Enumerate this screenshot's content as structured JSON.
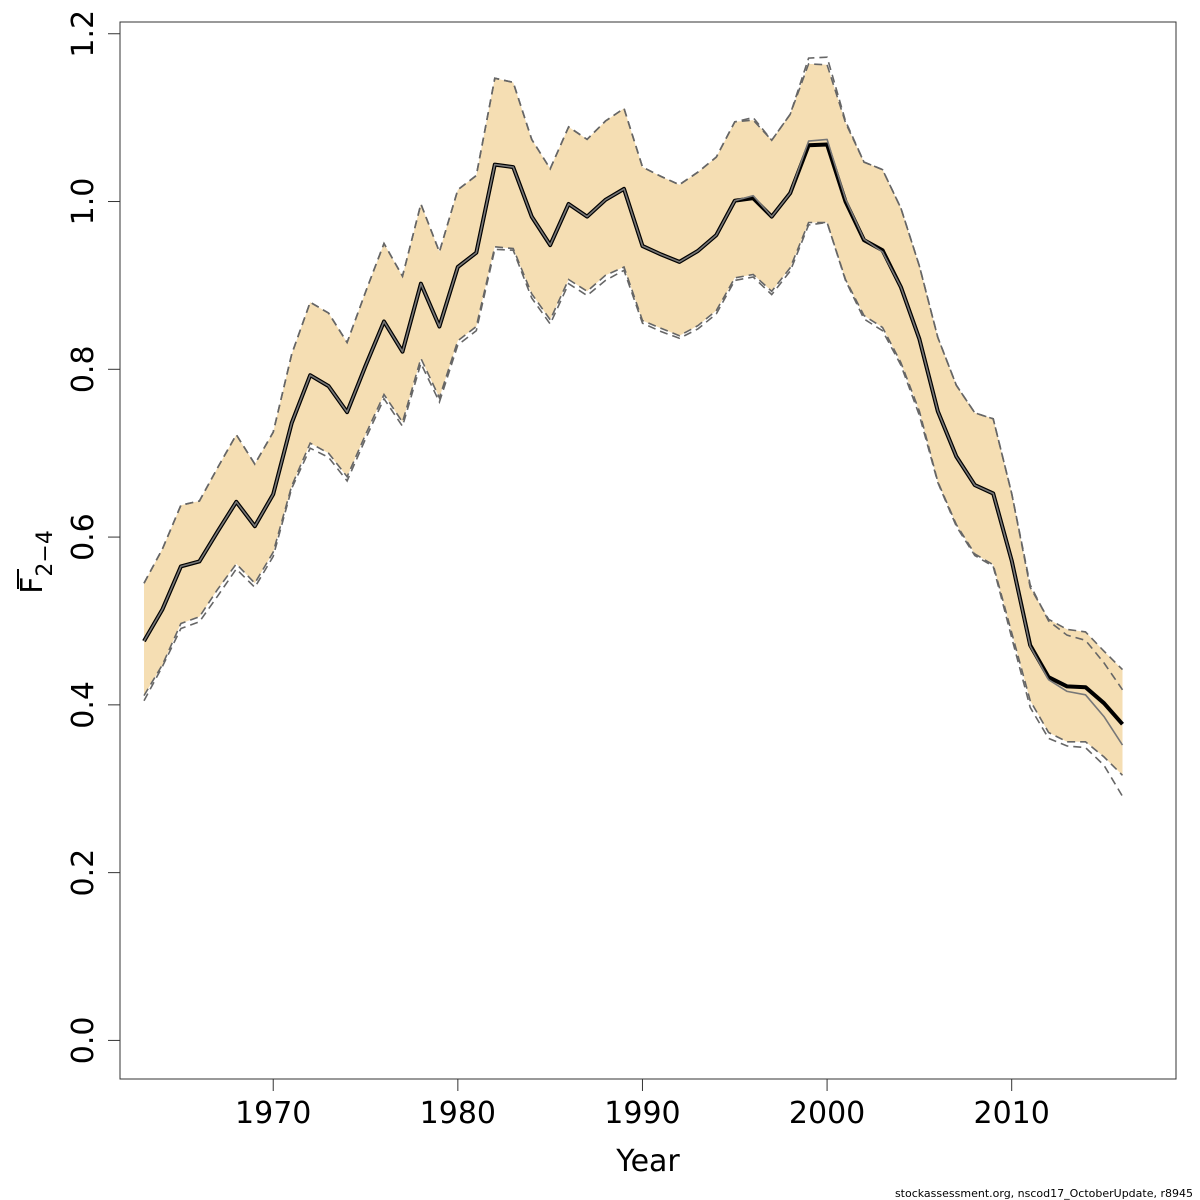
{
  "chart_data": {
    "type": "line",
    "xlabel": "Year",
    "ylabel_main": "F",
    "ylabel_sub": "2−4",
    "footer": "stockassessment.org, nscod17_OctoberUpdate, r8945",
    "xlim": [
      1961.7,
      2018.9
    ],
    "ylim": [
      -0.046,
      1.214
    ],
    "xticks": [
      1970,
      1980,
      1990,
      2000,
      2010
    ],
    "xtick_labels": [
      "1970",
      "1980",
      "1990",
      "2000",
      "2010"
    ],
    "yticks": [
      0.0,
      0.2,
      0.4,
      0.6,
      0.8,
      1.0,
      1.2
    ],
    "ytick_labels": [
      "0.0",
      "0.2",
      "0.4",
      "0.6",
      "0.8",
      "1.0",
      "1.2"
    ],
    "grid": false,
    "colors": {
      "band": "#f5deb3",
      "estimate": "#000000",
      "previous": "#777777",
      "bounds": "#666666"
    },
    "x": [
      1963,
      1964,
      1965,
      1966,
      1967,
      1968,
      1969,
      1970,
      1971,
      1972,
      1973,
      1974,
      1975,
      1976,
      1977,
      1978,
      1979,
      1980,
      1981,
      1982,
      1983,
      1984,
      1985,
      1986,
      1987,
      1988,
      1989,
      1990,
      1991,
      1992,
      1993,
      1994,
      1995,
      1996,
      1997,
      1998,
      1999,
      2000,
      2001,
      2002,
      2003,
      2004,
      2005,
      2006,
      2007,
      2008,
      2009,
      2010,
      2011,
      2012,
      2013,
      2014,
      2015,
      2016
    ],
    "series": [
      {
        "role": "estimate",
        "values": [
          0.476,
          0.514,
          0.565,
          0.571,
          0.607,
          0.642,
          0.613,
          0.651,
          0.736,
          0.793,
          0.78,
          0.749,
          0.804,
          0.857,
          0.821,
          0.902,
          0.851,
          0.922,
          0.939,
          1.044,
          1.041,
          0.982,
          0.948,
          0.997,
          0.982,
          1.002,
          1.015,
          0.947,
          0.937,
          0.928,
          0.941,
          0.96,
          1.001,
          1.004,
          0.982,
          1.01,
          1.067,
          1.068,
          1.0,
          0.954,
          0.942,
          0.898,
          0.836,
          0.75,
          0.696,
          0.662,
          0.652,
          0.572,
          0.471,
          0.433,
          0.422,
          0.421,
          0.402,
          0.377
        ]
      },
      {
        "role": "previous",
        "values": [
          0.476,
          0.514,
          0.565,
          0.571,
          0.607,
          0.642,
          0.613,
          0.651,
          0.736,
          0.793,
          0.78,
          0.749,
          0.804,
          0.857,
          0.821,
          0.902,
          0.851,
          0.922,
          0.939,
          1.044,
          1.041,
          0.982,
          0.948,
          0.997,
          0.982,
          1.002,
          1.015,
          0.947,
          0.937,
          0.928,
          0.941,
          0.96,
          1.001,
          1.007,
          0.982,
          1.01,
          1.072,
          1.074,
          1.003,
          0.955,
          0.94,
          0.898,
          0.836,
          0.75,
          0.696,
          0.662,
          0.652,
          0.572,
          0.47,
          0.43,
          0.416,
          0.412,
          0.386,
          0.352
        ]
      },
      {
        "role": "upper",
        "values": [
          0.545,
          0.586,
          0.638,
          0.643,
          0.683,
          0.722,
          0.687,
          0.725,
          0.818,
          0.88,
          0.867,
          0.832,
          0.892,
          0.95,
          0.911,
          0.997,
          0.94,
          1.014,
          1.031,
          1.147,
          1.142,
          1.074,
          1.039,
          1.089,
          1.074,
          1.096,
          1.111,
          1.041,
          1.03,
          1.02,
          1.035,
          1.053,
          1.095,
          1.097,
          1.073,
          1.104,
          1.164,
          1.163,
          1.094,
          1.047,
          1.038,
          0.992,
          0.923,
          0.838,
          0.781,
          0.748,
          0.741,
          0.652,
          0.54,
          0.502,
          0.49,
          0.487,
          0.464,
          0.442
        ]
      },
      {
        "role": "lower",
        "values": [
          0.411,
          0.448,
          0.497,
          0.505,
          0.538,
          0.568,
          0.545,
          0.582,
          0.661,
          0.712,
          0.7,
          0.672,
          0.722,
          0.77,
          0.737,
          0.813,
          0.766,
          0.834,
          0.851,
          0.946,
          0.944,
          0.89,
          0.859,
          0.907,
          0.893,
          0.912,
          0.922,
          0.858,
          0.849,
          0.84,
          0.852,
          0.87,
          0.909,
          0.913,
          0.893,
          0.921,
          0.975,
          0.975,
          0.907,
          0.864,
          0.85,
          0.808,
          0.75,
          0.666,
          0.615,
          0.58,
          0.567,
          0.486,
          0.405,
          0.367,
          0.356,
          0.356,
          0.338,
          0.316
        ]
      },
      {
        "role": "previous-upper",
        "values": [
          0.545,
          0.586,
          0.638,
          0.643,
          0.683,
          0.722,
          0.687,
          0.725,
          0.818,
          0.88,
          0.867,
          0.832,
          0.892,
          0.95,
          0.911,
          0.997,
          0.94,
          1.014,
          1.031,
          1.147,
          1.142,
          1.074,
          1.039,
          1.089,
          1.074,
          1.096,
          1.111,
          1.041,
          1.03,
          1.02,
          1.035,
          1.053,
          1.095,
          1.1,
          1.073,
          1.104,
          1.171,
          1.172,
          1.096,
          1.047,
          1.038,
          0.992,
          0.923,
          0.838,
          0.781,
          0.748,
          0.741,
          0.652,
          0.543,
          0.5,
          0.483,
          0.477,
          0.45,
          0.418
        ]
      },
      {
        "role": "previous-lower",
        "values": [
          0.405,
          0.446,
          0.491,
          0.499,
          0.53,
          0.562,
          0.54,
          0.577,
          0.658,
          0.706,
          0.695,
          0.667,
          0.717,
          0.765,
          0.732,
          0.807,
          0.761,
          0.829,
          0.846,
          0.943,
          0.942,
          0.885,
          0.854,
          0.902,
          0.888,
          0.906,
          0.918,
          0.855,
          0.845,
          0.837,
          0.848,
          0.866,
          0.906,
          0.91,
          0.889,
          0.917,
          0.972,
          0.975,
          0.906,
          0.86,
          0.846,
          0.805,
          0.745,
          0.665,
          0.613,
          0.578,
          0.565,
          0.48,
          0.397,
          0.36,
          0.351,
          0.349,
          0.328,
          0.291
        ]
      }
    ]
  }
}
